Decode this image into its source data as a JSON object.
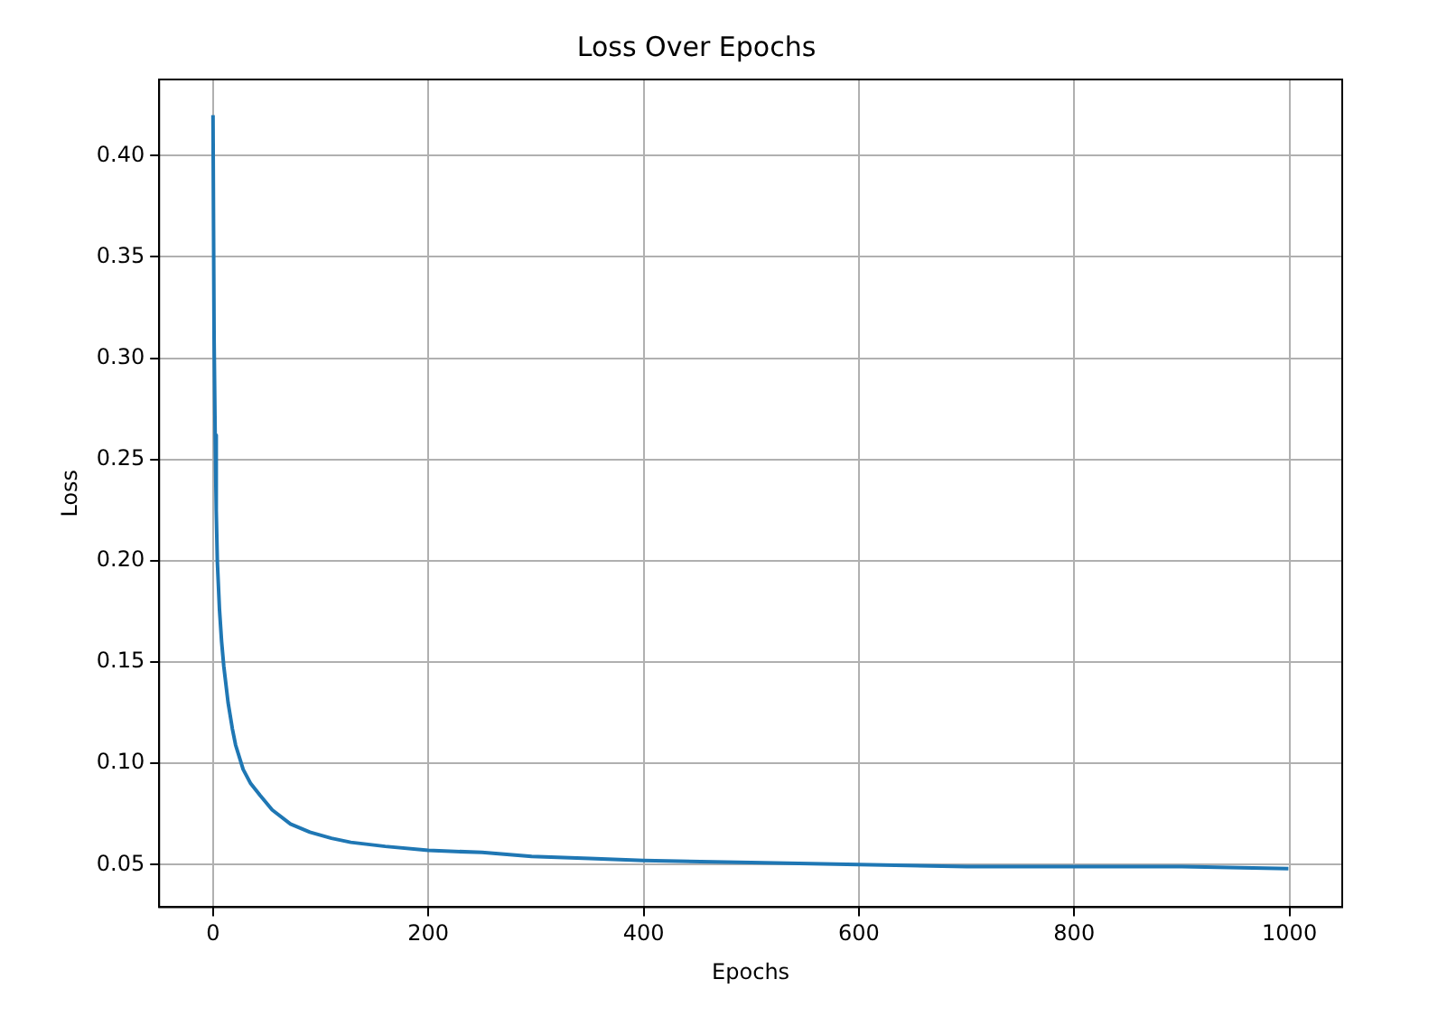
{
  "chart_data": {
    "type": "line",
    "title": "Loss Over Epochs",
    "xlabel": "Epochs",
    "ylabel": "Loss",
    "x": [
      0,
      1,
      2,
      3,
      4,
      6,
      8,
      10,
      14,
      18,
      21,
      28,
      35,
      44,
      55,
      72,
      90,
      110,
      128,
      160,
      200,
      250,
      296,
      350,
      400,
      500,
      600,
      700,
      800,
      900,
      999
    ],
    "series": [
      {
        "color": "#1f77b4",
        "values": [
          0.42,
          0.31,
          0.262,
          0.225,
          0.2,
          0.176,
          0.16,
          0.148,
          0.13,
          0.117,
          0.109,
          0.097,
          0.09,
          0.084,
          0.077,
          0.07,
          0.066,
          0.063,
          0.061,
          0.059,
          0.057,
          0.056,
          0.054,
          0.053,
          0.052,
          0.051,
          0.05,
          0.049,
          0.049,
          0.049,
          0.048
        ]
      }
    ],
    "xlim": [
      -50,
      1049
    ],
    "xticks": [
      0,
      200,
      400,
      600,
      800,
      1000
    ],
    "ylim": [
      0.029,
      0.4376
    ],
    "yticks": [
      0.05,
      {
        "value": 0.1,
        "label": "0.10"
      },
      0.15,
      {
        "value": 0.2,
        "label": "0.20"
      },
      0.25,
      {
        "value": 0.3,
        "label": "0.30"
      },
      0.35,
      {
        "value": 0.4,
        "label": "0.40"
      }
    ],
    "grid": true,
    "legend": false
  }
}
